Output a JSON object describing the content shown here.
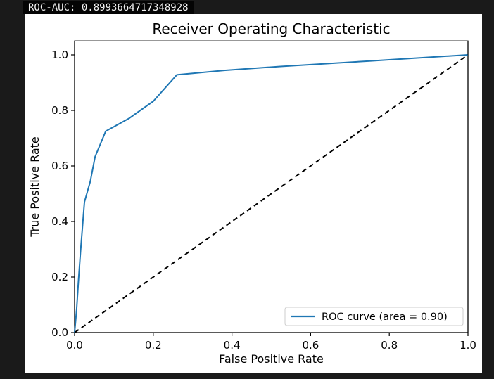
{
  "statusbar": {
    "roc_auc_text": "ROC-AUC: 0.8993664717348928"
  },
  "chart_data": {
    "type": "line",
    "title": "Receiver Operating Characteristic",
    "xlabel": "False Positive Rate",
    "ylabel": "True Positive Rate",
    "xlim": [
      0.0,
      1.0
    ],
    "ylim": [
      0.0,
      1.05
    ],
    "x_ticks": [
      0.0,
      0.2,
      0.4,
      0.6,
      0.8,
      1.0
    ],
    "y_ticks": [
      0.0,
      0.2,
      0.4,
      0.6,
      0.8,
      1.0
    ],
    "tick_decimals": 1,
    "grid": false,
    "background": "#ffffff",
    "spine_color": "#000000",
    "auc": 0.8993664717348928,
    "legend": {
      "position": "lower right",
      "entries": [
        {
          "label": "ROC curve (area = 0.90)",
          "color": "#1f77b4",
          "style": "solid"
        }
      ]
    },
    "series": [
      {
        "name": "ROC curve (area = 0.90)",
        "color": "#1f77b4",
        "style": "solid",
        "width": 2,
        "points": [
          [
            0.0,
            0.0
          ],
          [
            0.005,
            0.08
          ],
          [
            0.01,
            0.19
          ],
          [
            0.015,
            0.29
          ],
          [
            0.02,
            0.38
          ],
          [
            0.025,
            0.47
          ],
          [
            0.04,
            0.545
          ],
          [
            0.052,
            0.633
          ],
          [
            0.079,
            0.725
          ],
          [
            0.138,
            0.771
          ],
          [
            0.2,
            0.833
          ],
          [
            0.26,
            0.928
          ],
          [
            0.38,
            0.944
          ],
          [
            0.52,
            0.958
          ],
          [
            0.75,
            0.978
          ],
          [
            1.0,
            1.0
          ]
        ]
      },
      {
        "name": "chance-diagonal",
        "color": "#000000",
        "style": "dashed",
        "width": 2,
        "points": [
          [
            0.0,
            0.0
          ],
          [
            1.0,
            1.0
          ]
        ]
      }
    ]
  }
}
